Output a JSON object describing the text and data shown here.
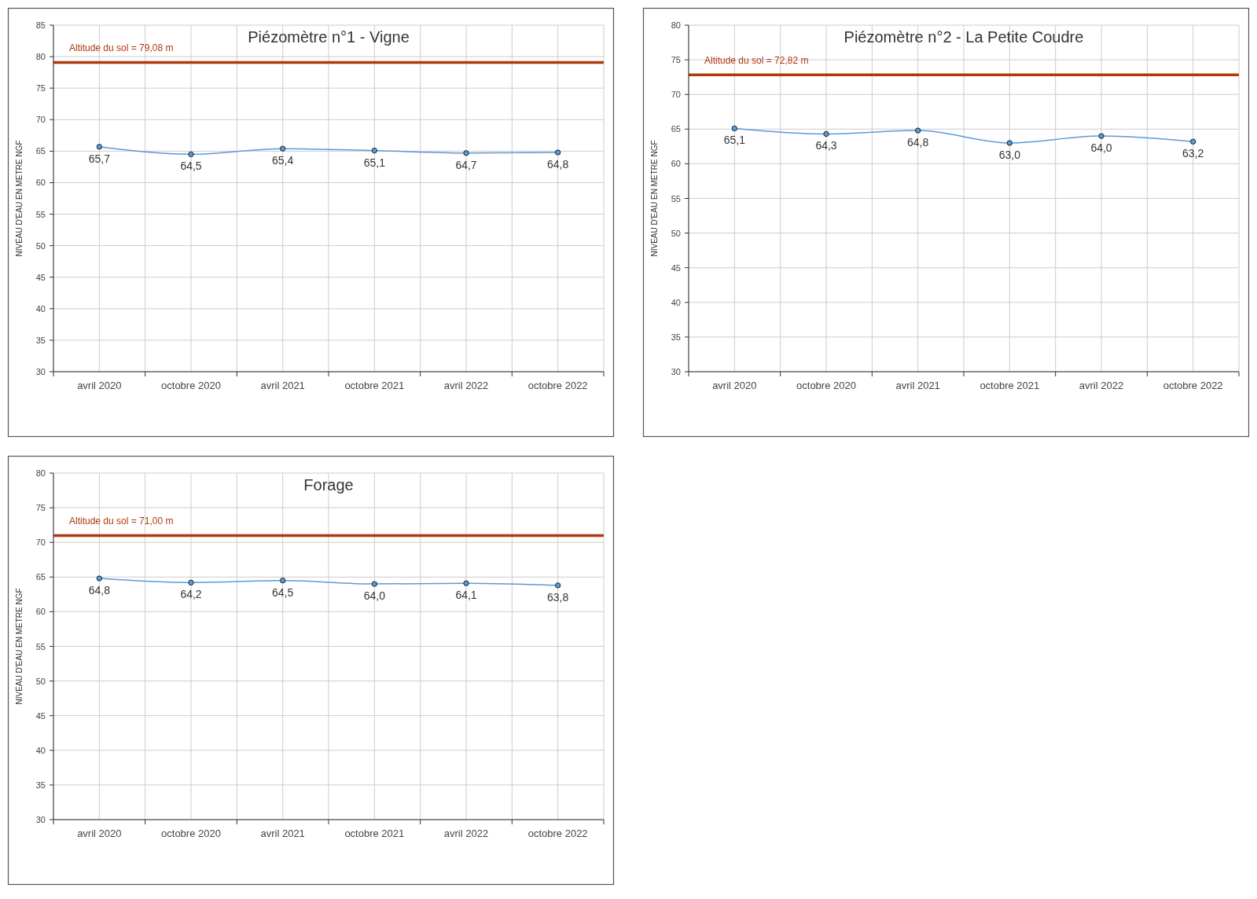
{
  "chart_data": [
    {
      "type": "line",
      "title": "Piézomètre n°1 - Vigne",
      "ylabel": "NIVEAU D'EAU EN METRE NGF",
      "categories": [
        "avril 2020",
        "octobre 2020",
        "avril 2021",
        "octobre 2021",
        "avril 2022",
        "octobre 2022"
      ],
      "series": [
        {
          "color": "#5b9bd5",
          "values": [
            65.7,
            64.5,
            65.4,
            65.1,
            64.7,
            64.8
          ],
          "value_labels": [
            "65,7",
            "64,5",
            "65,4",
            "65,1",
            "64,7",
            "64,8"
          ]
        }
      ],
      "ylim": [
        30,
        85
      ],
      "yticks": [
        30,
        35,
        40,
        45,
        50,
        55,
        60,
        65,
        70,
        75,
        80,
        85
      ],
      "grid": true,
      "marker": "circle",
      "ref_lines": [
        {
          "axis": "y",
          "value": 79.08,
          "label": "Altitude  du sol = 79,08 m",
          "color": "#b0380e"
        }
      ]
    },
    {
      "type": "line",
      "title": "Piézomètre n°2 - La Petite Coudre",
      "ylabel": "NIVEAU D'EAU EN METRE NGF",
      "categories": [
        "avril 2020",
        "octobre 2020",
        "avril 2021",
        "octobre 2021",
        "avril 2022",
        "octobre 2022"
      ],
      "series": [
        {
          "color": "#5b9bd5",
          "values": [
            65.1,
            64.3,
            64.8,
            63.0,
            64.0,
            63.2
          ],
          "value_labels": [
            "65,1",
            "64,3",
            "64,8",
            "63,0",
            "64,0",
            "63,2"
          ]
        }
      ],
      "ylim": [
        30,
        80
      ],
      "yticks": [
        30,
        35,
        40,
        45,
        50,
        55,
        60,
        65,
        70,
        75,
        80
      ],
      "grid": true,
      "marker": "circle",
      "ref_lines": [
        {
          "axis": "y",
          "value": 72.82,
          "label": "Altitude  du sol = 72,82 m",
          "color": "#b0380e"
        }
      ]
    },
    {
      "type": "line",
      "title": "Forage",
      "ylabel": "NIVEAU D'EAU EN METRE NGF",
      "categories": [
        "avril 2020",
        "octobre 2020",
        "avril 2021",
        "octobre 2021",
        "avril 2022",
        "octobre 2022"
      ],
      "series": [
        {
          "color": "#5b9bd5",
          "values": [
            64.8,
            64.2,
            64.5,
            64.0,
            64.1,
            63.8
          ],
          "value_labels": [
            "64,8",
            "64,2",
            "64,5",
            "64,0",
            "64,1",
            "63,8"
          ]
        }
      ],
      "ylim": [
        30,
        80
      ],
      "yticks": [
        30,
        35,
        40,
        45,
        50,
        55,
        60,
        65,
        70,
        75,
        80
      ],
      "grid": true,
      "marker": "circle",
      "ref_lines": [
        {
          "axis": "y",
          "value": 71.0,
          "label": "Altitude  du sol = 71,00 m",
          "color": "#b0380e"
        }
      ]
    }
  ]
}
